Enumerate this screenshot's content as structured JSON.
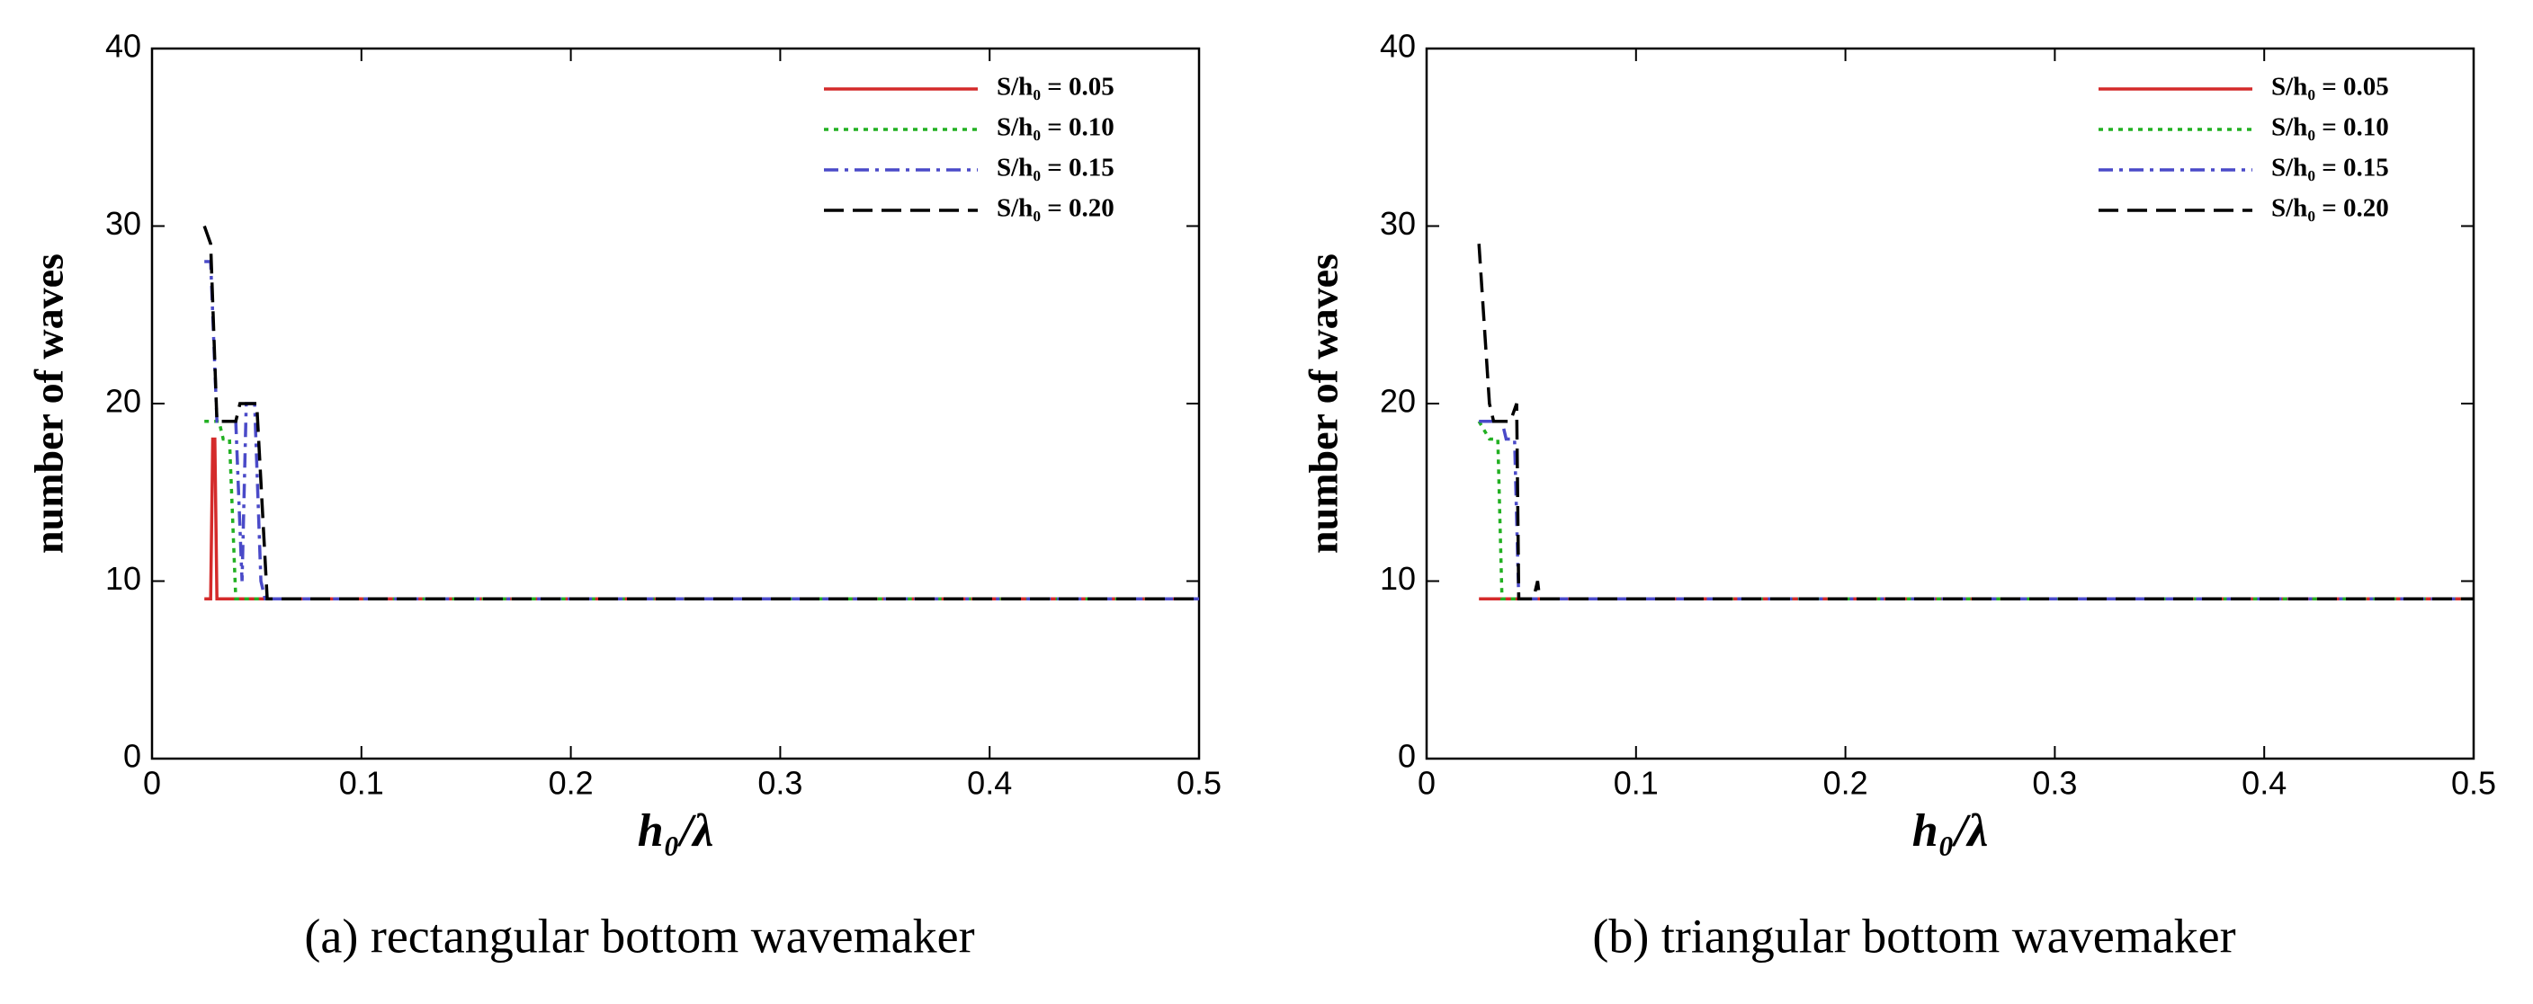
{
  "chart_data": [
    {
      "type": "line",
      "caption": "(a) rectangular bottom wavemaker",
      "x_label": "h₀/λ",
      "y_label": "number of waves",
      "xlim": [
        0,
        0.5
      ],
      "xticks": [
        0,
        0.1,
        0.2,
        0.3,
        0.4,
        0.5
      ],
      "ylim": [
        0,
        40
      ],
      "yticks": [
        0,
        10,
        20,
        30,
        40
      ],
      "legend": "upper right",
      "series": [
        {
          "name": "S/h₀ = 0.05",
          "color": "#d42a2a",
          "linestyle": "solid",
          "x": [
            0.025,
            0.028,
            0.029,
            0.03,
            0.031,
            0.5
          ],
          "values": [
            9,
            9,
            18,
            18,
            9,
            9
          ]
        },
        {
          "name": "S/h₀ = 0.10",
          "color": "#22b022",
          "linestyle": "dotted",
          "x": [
            0.025,
            0.032,
            0.034,
            0.037,
            0.04,
            0.5
          ],
          "values": [
            19,
            19,
            18,
            18,
            9,
            9
          ]
        },
        {
          "name": "S/h₀ = 0.15",
          "color": "#4a4ac8",
          "linestyle": "dashdot",
          "x": [
            0.025,
            0.028,
            0.031,
            0.04,
            0.043,
            0.045,
            0.049,
            0.052,
            0.054,
            0.5
          ],
          "values": [
            28,
            28,
            19,
            19,
            10,
            20,
            20,
            10,
            9,
            9
          ]
        },
        {
          "name": "S/h₀ = 0.20",
          "color": "#000000",
          "linestyle": "dashed",
          "x": [
            0.025,
            0.028,
            0.031,
            0.04,
            0.042,
            0.05,
            0.055,
            0.5
          ],
          "values": [
            30,
            29,
            19,
            19,
            20,
            20,
            9,
            9
          ]
        }
      ]
    },
    {
      "type": "line",
      "caption": "(b) triangular bottom wavemaker",
      "x_label": "h₀/λ",
      "y_label": "number of waves",
      "xlim": [
        0,
        0.5
      ],
      "xticks": [
        0,
        0.1,
        0.2,
        0.3,
        0.4,
        0.5
      ],
      "ylim": [
        0,
        40
      ],
      "yticks": [
        0,
        10,
        20,
        30,
        40
      ],
      "legend": "upper right",
      "series": [
        {
          "name": "S/h₀ = 0.05",
          "color": "#d42a2a",
          "linestyle": "solid",
          "x": [
            0.025,
            0.5
          ],
          "values": [
            9,
            9
          ]
        },
        {
          "name": "S/h₀ = 0.10",
          "color": "#22b022",
          "linestyle": "dotted",
          "x": [
            0.025,
            0.03,
            0.034,
            0.036,
            0.5
          ],
          "values": [
            19,
            18,
            18,
            9,
            9
          ]
        },
        {
          "name": "S/h₀ = 0.15",
          "color": "#4a4ac8",
          "linestyle": "dashdot",
          "x": [
            0.025,
            0.036,
            0.038,
            0.042,
            0.044,
            0.5
          ],
          "values": [
            19,
            19,
            18,
            18,
            9,
            9
          ]
        },
        {
          "name": "S/h₀ = 0.20",
          "color": "#000000",
          "linestyle": "dashed",
          "x": [
            0.025,
            0.03,
            0.032,
            0.04,
            0.043,
            0.044,
            0.051,
            0.053,
            0.054,
            0.5
          ],
          "values": [
            29,
            20,
            19,
            19,
            20,
            9,
            9,
            10,
            9,
            9
          ]
        }
      ]
    }
  ]
}
